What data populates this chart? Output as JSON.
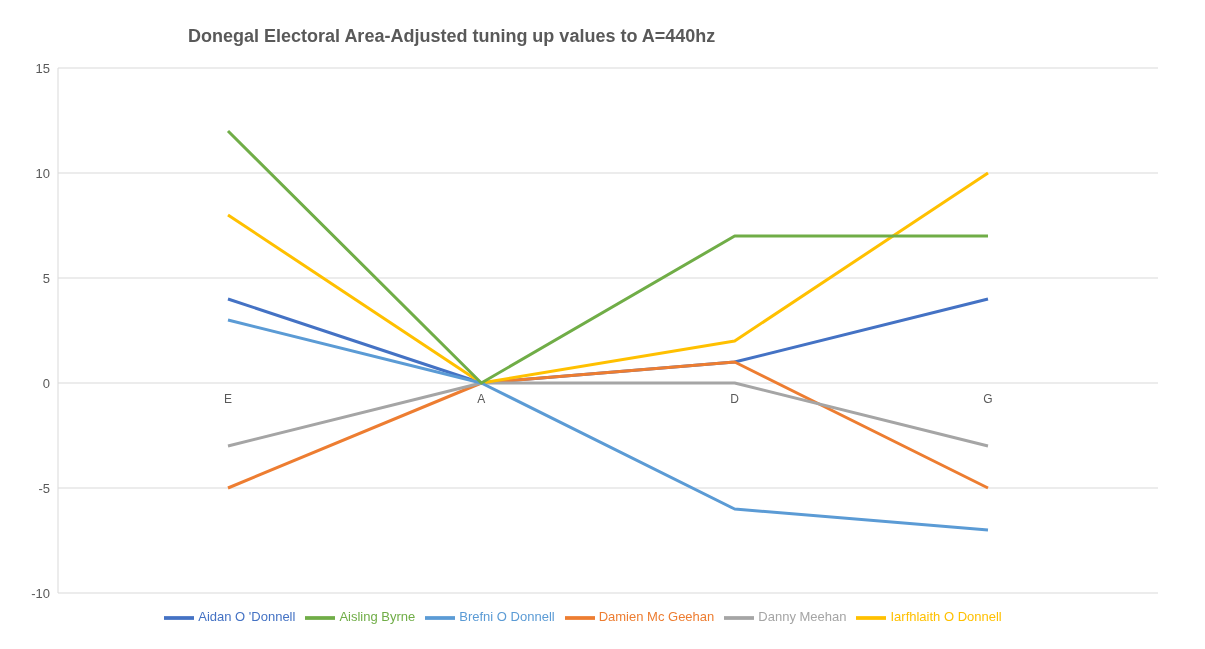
{
  "chart_data": {
    "type": "line",
    "title": "Donegal Electoral Area-Adjusted tuning up values to A=440hz",
    "categories": [
      "E",
      "A",
      "D",
      "G"
    ],
    "series": [
      {
        "name": "Aidan O 'Donnell",
        "color": "#4472c4",
        "values": [
          4,
          0,
          1,
          4
        ]
      },
      {
        "name": "Damien Mc Geehan",
        "color": "#ed7d31",
        "values": [
          -5,
          0,
          1,
          -5
        ]
      },
      {
        "name": "Danny Meehan",
        "color": "#a5a5a5",
        "values": [
          -3,
          0,
          0,
          -3
        ]
      },
      {
        "name": "Iarfhlaith O Donnell",
        "color": "#ffc000",
        "values": [
          8,
          0,
          2,
          10
        ]
      },
      {
        "name": "Brefni O Donnell",
        "color": "#5b9bd5",
        "values": [
          3,
          0,
          -6,
          -7
        ]
      },
      {
        "name": "Aisling Byrne",
        "color": "#70ad47",
        "values": [
          12,
          0,
          7,
          7
        ]
      }
    ],
    "ylim": [
      -10,
      15
    ],
    "yticks": [
      -10,
      -5,
      0,
      5,
      10,
      15
    ],
    "grid": "y",
    "legend": "bottom",
    "marker": "none",
    "line_style": "solid"
  }
}
